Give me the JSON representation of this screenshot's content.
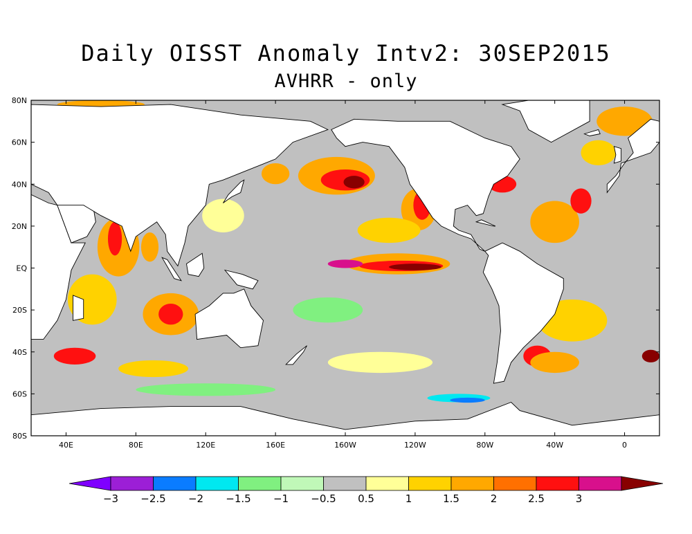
{
  "title": "Daily OISST Anomaly Intv2: 30SEP2015",
  "subtitle": "AVHRR - only",
  "map": {
    "projection": "equirectangular",
    "lon_range": [
      20,
      380
    ],
    "lat_range": [
      -80,
      80
    ],
    "ocean_color": "#c0c0c0",
    "land_color": "#ffffff"
  },
  "lat_ticks": [
    {
      "lat": 80,
      "label": "80N"
    },
    {
      "lat": 60,
      "label": "60N"
    },
    {
      "lat": 40,
      "label": "40N"
    },
    {
      "lat": 20,
      "label": "20N"
    },
    {
      "lat": 0,
      "label": "EQ"
    },
    {
      "lat": -20,
      "label": "20S"
    },
    {
      "lat": -40,
      "label": "40S"
    },
    {
      "lat": -60,
      "label": "60S"
    },
    {
      "lat": -80,
      "label": "80S"
    }
  ],
  "lon_ticks": [
    {
      "lon": 40,
      "label": "40E"
    },
    {
      "lon": 80,
      "label": "80E"
    },
    {
      "lon": 120,
      "label": "120E"
    },
    {
      "lon": 160,
      "label": "160E"
    },
    {
      "lon": 200,
      "label": "160W"
    },
    {
      "lon": 240,
      "label": "120W"
    },
    {
      "lon": 280,
      "label": "80W"
    },
    {
      "lon": 320,
      "label": "40W"
    },
    {
      "lon": 360,
      "label": "0"
    }
  ],
  "colorbar": {
    "colors": [
      "#7f00ff",
      "#9c1fd6",
      "#0a7cff",
      "#00e8f0",
      "#80f080",
      "#c0f8b8",
      "#c0c0c0",
      "#ffff98",
      "#ffd200",
      "#ffa800",
      "#ff7000",
      "#ff1010",
      "#d8108c",
      "#880000"
    ],
    "labels": [
      "-3",
      "-2.5",
      "-2",
      "-1.5",
      "-1",
      "-0.5",
      "0.5",
      "1",
      "1.5",
      "2",
      "2.5",
      "3"
    ]
  },
  "anomaly_patches": [
    {
      "lon": 230,
      "lat": 2,
      "rx": 30,
      "ry": 5,
      "color": "#ffa800"
    },
    {
      "lon": 232,
      "lat": 1,
      "rx": 24,
      "ry": 2.5,
      "color": "#ff1010"
    },
    {
      "lon": 240,
      "lat": 0.5,
      "rx": 15,
      "ry": 1.6,
      "color": "#880000"
    },
    {
      "lon": 200,
      "lat": 2,
      "rx": 10,
      "ry": 2,
      "color": "#d8108c"
    },
    {
      "lon": 195,
      "lat": 44,
      "rx": 22,
      "ry": 9,
      "color": "#ffa800"
    },
    {
      "lon": 200,
      "lat": 42,
      "rx": 14,
      "ry": 5,
      "color": "#ff1010"
    },
    {
      "lon": 205,
      "lat": 41,
      "rx": 6,
      "ry": 3,
      "color": "#880000"
    },
    {
      "lon": 242,
      "lat": 28,
      "rx": 10,
      "ry": 10,
      "color": "#ffa800"
    },
    {
      "lon": 244,
      "lat": 30,
      "rx": 5,
      "ry": 7,
      "color": "#ff1010"
    },
    {
      "lon": 225,
      "lat": 18,
      "rx": 18,
      "ry": 6,
      "color": "#ffd200"
    },
    {
      "lon": 70,
      "lat": 10,
      "rx": 12,
      "ry": 14,
      "color": "#ffa800"
    },
    {
      "lon": 68,
      "lat": 14,
      "rx": 4,
      "ry": 8,
      "color": "#ff1010"
    },
    {
      "lon": 88,
      "lat": 10,
      "rx": 5,
      "ry": 7,
      "color": "#ffa800"
    },
    {
      "lon": 55,
      "lat": -15,
      "rx": 14,
      "ry": 12,
      "color": "#ffd200"
    },
    {
      "lon": 100,
      "lat": -22,
      "rx": 16,
      "ry": 10,
      "color": "#ffa800"
    },
    {
      "lon": 100,
      "lat": -22,
      "rx": 7,
      "ry": 5,
      "color": "#ff1010"
    },
    {
      "lon": 320,
      "lat": 22,
      "rx": 14,
      "ry": 10,
      "color": "#ffa800"
    },
    {
      "lon": 335,
      "lat": 32,
      "rx": 6,
      "ry": 6,
      "color": "#ff1010"
    },
    {
      "lon": 290,
      "lat": 40,
      "rx": 8,
      "ry": 4,
      "color": "#ff1010"
    },
    {
      "lon": 330,
      "lat": -25,
      "rx": 20,
      "ry": 10,
      "color": "#ffd200"
    },
    {
      "lon": 310,
      "lat": -42,
      "rx": 8,
      "ry": 5,
      "color": "#ff1010"
    },
    {
      "lon": 320,
      "lat": -45,
      "rx": 14,
      "ry": 5,
      "color": "#ffa800"
    },
    {
      "lon": 45,
      "lat": -42,
      "rx": 12,
      "ry": 4,
      "color": "#ff1010"
    },
    {
      "lon": 90,
      "lat": -48,
      "rx": 20,
      "ry": 4,
      "color": "#ffd200"
    },
    {
      "lon": 360,
      "lat": 70,
      "rx": 16,
      "ry": 7,
      "color": "#ffa800"
    },
    {
      "lon": 60,
      "lat": 78,
      "rx": 25,
      "ry": 2,
      "color": "#ffa800"
    },
    {
      "lon": 160,
      "lat": 45,
      "rx": 8,
      "ry": 5,
      "color": "#ffa800"
    },
    {
      "lon": 375,
      "lat": -42,
      "rx": 5,
      "ry": 3,
      "color": "#880000"
    },
    {
      "lon": 265,
      "lat": -62,
      "rx": 18,
      "ry": 2,
      "color": "#00e8f0"
    },
    {
      "lon": 270,
      "lat": -63,
      "rx": 10,
      "ry": 1.2,
      "color": "#0a7cff"
    },
    {
      "lon": 120,
      "lat": -58,
      "rx": 40,
      "ry": 3,
      "color": "#80f080"
    },
    {
      "lon": 220,
      "lat": -45,
      "rx": 30,
      "ry": 5,
      "color": "#ffff98"
    },
    {
      "lon": 190,
      "lat": -20,
      "rx": 20,
      "ry": 6,
      "color": "#80f080"
    },
    {
      "lon": 130,
      "lat": 25,
      "rx": 12,
      "ry": 8,
      "color": "#ffff98"
    },
    {
      "lon": 345,
      "lat": 55,
      "rx": 10,
      "ry": 6,
      "color": "#ffd200"
    }
  ],
  "land_masses": [
    {
      "name": "Africa",
      "points": [
        [
          20,
          35
        ],
        [
          30,
          31
        ],
        [
          35,
          30
        ],
        [
          43,
          12
        ],
        [
          51,
          12
        ],
        [
          43,
          -1
        ],
        [
          40,
          -15
        ],
        [
          35,
          -25
        ],
        [
          27,
          -34
        ],
        [
          20,
          -34
        ]
      ]
    },
    {
      "name": "Europe-Asia",
      "points": [
        [
          20,
          78
        ],
        [
          60,
          77
        ],
        [
          100,
          78
        ],
        [
          140,
          73
        ],
        [
          180,
          70
        ],
        [
          190,
          66
        ],
        [
          170,
          60
        ],
        [
          160,
          52
        ],
        [
          142,
          46
        ],
        [
          130,
          42
        ],
        [
          122,
          40
        ],
        [
          120,
          30
        ],
        [
          110,
          20
        ],
        [
          108,
          12
        ],
        [
          104,
          1
        ],
        [
          98,
          8
        ],
        [
          97,
          16
        ],
        [
          92,
          22
        ],
        [
          80,
          15
        ],
        [
          77,
          8
        ],
        [
          72,
          20
        ],
        [
          60,
          25
        ],
        [
          56,
          27
        ],
        [
          52,
          18
        ],
        [
          43,
          12
        ],
        [
          35,
          30
        ],
        [
          30,
          36
        ],
        [
          20,
          40
        ]
      ]
    },
    {
      "name": "Arabia",
      "points": [
        [
          35,
          30
        ],
        [
          43,
          12
        ],
        [
          52,
          15
        ],
        [
          57,
          22
        ],
        [
          56,
          27
        ],
        [
          50,
          30
        ],
        [
          48,
          30
        ],
        [
          35,
          30
        ]
      ]
    },
    {
      "name": "Australia",
      "points": [
        [
          114,
          -22
        ],
        [
          122,
          -18
        ],
        [
          130,
          -12
        ],
        [
          136,
          -12
        ],
        [
          142,
          -10
        ],
        [
          146,
          -18
        ],
        [
          153,
          -25
        ],
        [
          150,
          -37
        ],
        [
          140,
          -38
        ],
        [
          132,
          -32
        ],
        [
          115,
          -34
        ]
      ]
    },
    {
      "name": "NorthAmerica",
      "points": [
        [
          192,
          66
        ],
        [
          205,
          71
        ],
        [
          230,
          70
        ],
        [
          260,
          70
        ],
        [
          280,
          62
        ],
        [
          295,
          58
        ],
        [
          300,
          52
        ],
        [
          293,
          44
        ],
        [
          285,
          40
        ],
        [
          282,
          34
        ],
        [
          279,
          26
        ],
        [
          275,
          25
        ],
        [
          270,
          30
        ],
        [
          263,
          28
        ],
        [
          262,
          20
        ],
        [
          265,
          18
        ],
        [
          272,
          16
        ],
        [
          277,
          9
        ],
        [
          280,
          8
        ],
        [
          272,
          14
        ],
        [
          265,
          16
        ],
        [
          255,
          20
        ],
        [
          250,
          24
        ],
        [
          243,
          33
        ],
        [
          237,
          40
        ],
        [
          234,
          48
        ],
        [
          225,
          58
        ],
        [
          210,
          60
        ],
        [
          200,
          58
        ],
        [
          195,
          62
        ]
      ]
    },
    {
      "name": "Greenland",
      "points": [
        [
          290,
          78
        ],
        [
          320,
          82
        ],
        [
          340,
          80
        ],
        [
          340,
          70
        ],
        [
          318,
          60
        ],
        [
          305,
          66
        ],
        [
          300,
          75
        ]
      ]
    },
    {
      "name": "SouthAmerica",
      "points": [
        [
          280,
          8
        ],
        [
          290,
          12
        ],
        [
          300,
          8
        ],
        [
          310,
          2
        ],
        [
          325,
          -5
        ],
        [
          325,
          -10
        ],
        [
          320,
          -22
        ],
        [
          312,
          -30
        ],
        [
          302,
          -38
        ],
        [
          295,
          -45
        ],
        [
          291,
          -54
        ],
        [
          285,
          -55
        ],
        [
          287,
          -45
        ],
        [
          289,
          -30
        ],
        [
          288,
          -18
        ],
        [
          284,
          -10
        ],
        [
          279,
          -2
        ],
        [
          282,
          6
        ]
      ]
    },
    {
      "name": "Antarctica",
      "points": [
        [
          20,
          -70
        ],
        [
          60,
          -67
        ],
        [
          100,
          -66
        ],
        [
          140,
          -66
        ],
        [
          170,
          -72
        ],
        [
          200,
          -77
        ],
        [
          240,
          -73
        ],
        [
          270,
          -72
        ],
        [
          295,
          -64
        ],
        [
          300,
          -68
        ],
        [
          330,
          -75
        ],
        [
          380,
          -70
        ],
        [
          380,
          -80
        ],
        [
          20,
          -80
        ]
      ]
    },
    {
      "name": "Madagascar",
      "points": [
        [
          44,
          -13
        ],
        [
          50,
          -15
        ],
        [
          50,
          -24
        ],
        [
          44,
          -25
        ]
      ]
    },
    {
      "name": "Borneo",
      "points": [
        [
          109,
          2
        ],
        [
          118,
          7
        ],
        [
          119,
          0
        ],
        [
          116,
          -4
        ],
        [
          110,
          -3
        ]
      ]
    },
    {
      "name": "Sumatra",
      "points": [
        [
          95,
          5
        ],
        [
          98,
          4
        ],
        [
          106,
          -6
        ],
        [
          102,
          -5
        ]
      ]
    },
    {
      "name": "NewGuinea",
      "points": [
        [
          131,
          -1
        ],
        [
          141,
          -3
        ],
        [
          150,
          -6
        ],
        [
          147,
          -10
        ],
        [
          138,
          -8
        ]
      ]
    },
    {
      "name": "Japan",
      "points": [
        [
          130,
          31
        ],
        [
          135,
          34
        ],
        [
          140,
          36
        ],
        [
          142,
          42
        ],
        [
          140,
          41
        ],
        [
          133,
          35
        ]
      ]
    },
    {
      "name": "NewZealand",
      "points": [
        [
          166,
          -46
        ],
        [
          172,
          -41
        ],
        [
          178,
          -37
        ],
        [
          176,
          -40
        ],
        [
          170,
          -46
        ]
      ]
    },
    {
      "name": "UK",
      "points": [
        [
          354,
          50
        ],
        [
          358,
          51
        ],
        [
          358,
          57
        ],
        [
          354,
          58
        ],
        [
          355,
          54
        ]
      ]
    },
    {
      "name": "Europe-West",
      "points": [
        [
          350,
          36
        ],
        [
          357,
          44
        ],
        [
          358,
          50
        ],
        [
          375,
          55
        ],
        [
          380,
          60
        ],
        [
          380,
          70
        ],
        [
          375,
          71
        ],
        [
          362,
          62
        ],
        [
          365,
          55
        ],
        [
          360,
          50
        ],
        [
          355,
          44
        ],
        [
          350,
          40
        ]
      ]
    },
    {
      "name": "Iceland",
      "points": [
        [
          337,
          64
        ],
        [
          345,
          66
        ],
        [
          346,
          64
        ],
        [
          340,
          63
        ]
      ]
    },
    {
      "name": "Cuba",
      "points": [
        [
          275,
          22
        ],
        [
          285,
          20
        ],
        [
          286,
          20
        ],
        [
          278,
          23
        ]
      ]
    }
  ]
}
